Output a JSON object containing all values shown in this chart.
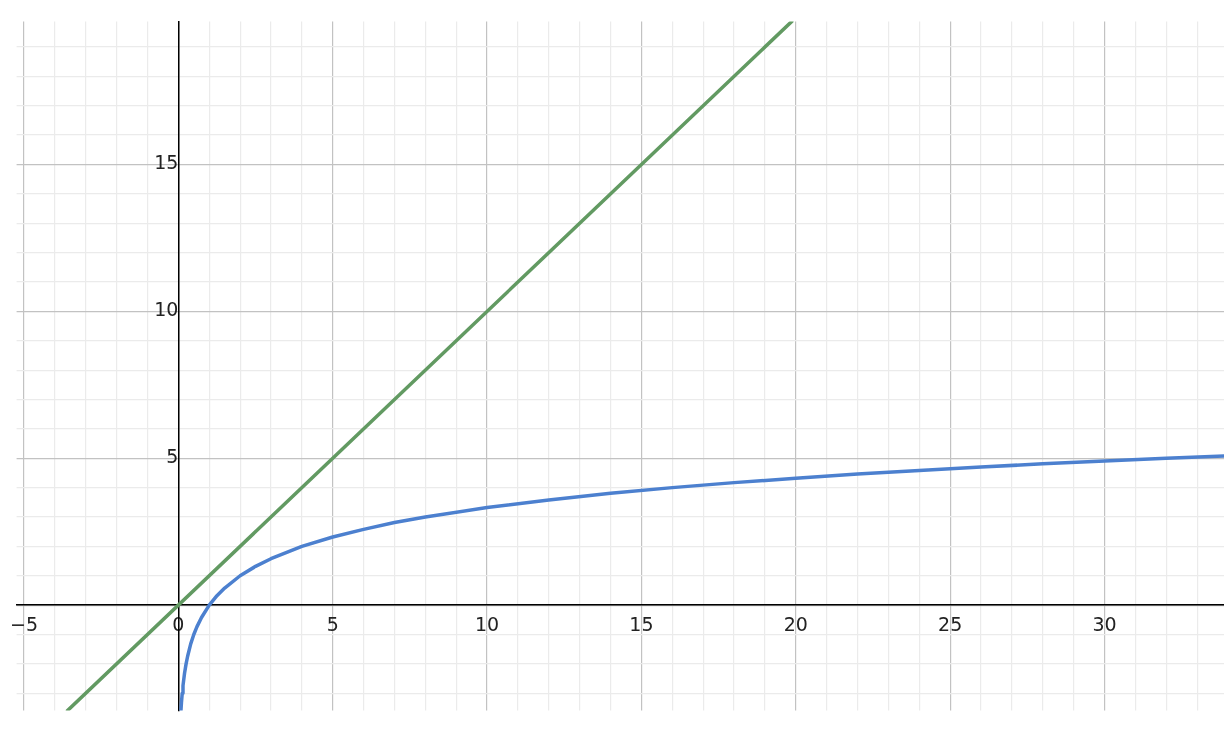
{
  "chart_data": {
    "type": "line",
    "series": [
      {
        "color": "#629a62",
        "x": [
          -3.59,
          19.87
        ],
        "values": [
          -3.59,
          19.87
        ]
      },
      {
        "color": "#4c80cf",
        "x": [
          0.083,
          0.1,
          0.125,
          0.15,
          0.2,
          0.25,
          0.3,
          0.4,
          0.5,
          0.6,
          0.75,
          1,
          1.25,
          1.5,
          2,
          2.5,
          3,
          4,
          5,
          6,
          7,
          8,
          10,
          12,
          14,
          16,
          18,
          20,
          22,
          24,
          26,
          28,
          30,
          32,
          33.87
        ],
        "values": [
          -3.59,
          -3.32,
          -3,
          -2.74,
          -2.32,
          -2,
          -1.74,
          -1.32,
          -1,
          -0.74,
          -0.42,
          0,
          0.32,
          0.58,
          1,
          1.32,
          1.58,
          2,
          2.32,
          2.58,
          2.81,
          3,
          3.32,
          3.58,
          3.81,
          4,
          4.17,
          4.32,
          4.46,
          4.58,
          4.7,
          4.81,
          4.91,
          5,
          5.08
        ]
      }
    ],
    "xlim": [
      -5.24,
      33.87
    ],
    "ylim": [
      -3.59,
      19.87
    ],
    "xticks": [
      {
        "value": -5,
        "label": "−5"
      },
      {
        "value": -4,
        "label": null
      },
      {
        "value": -3,
        "label": null
      },
      {
        "value": -2,
        "label": null
      },
      {
        "value": -1,
        "label": null
      },
      0,
      {
        "value": 1,
        "label": null
      },
      {
        "value": 2,
        "label": null
      },
      {
        "value": 3,
        "label": null
      },
      {
        "value": 4,
        "label": null
      },
      5,
      {
        "value": 6,
        "label": null
      },
      {
        "value": 7,
        "label": null
      },
      {
        "value": 8,
        "label": null
      },
      {
        "value": 9,
        "label": null
      },
      10,
      {
        "value": 11,
        "label": null
      },
      {
        "value": 12,
        "label": null
      },
      {
        "value": 13,
        "label": null
      },
      {
        "value": 14,
        "label": null
      },
      15,
      {
        "value": 16,
        "label": null
      },
      {
        "value": 17,
        "label": null
      },
      {
        "value": 18,
        "label": null
      },
      {
        "value": 19,
        "label": null
      },
      20,
      {
        "value": 21,
        "label": null
      },
      {
        "value": 22,
        "label": null
      },
      {
        "value": 23,
        "label": null
      },
      {
        "value": 24,
        "label": null
      },
      25,
      {
        "value": 26,
        "label": null
      },
      {
        "value": 27,
        "label": null
      },
      {
        "value": 28,
        "label": null
      },
      {
        "value": 29,
        "label": null
      },
      30,
      {
        "value": 31,
        "label": null
      },
      {
        "value": 32,
        "label": null
      },
      {
        "value": 33,
        "label": null
      }
    ],
    "yticks": [
      {
        "value": -3,
        "label": null
      },
      {
        "value": -2,
        "label": null
      },
      {
        "value": -1,
        "label": null
      },
      {
        "value": 0,
        "label": null
      },
      {
        "value": 1,
        "label": null
      },
      {
        "value": 2,
        "label": null
      },
      {
        "value": 3,
        "label": null
      },
      {
        "value": 4,
        "label": null
      },
      5,
      {
        "value": 6,
        "label": null
      },
      {
        "value": 7,
        "label": null
      },
      {
        "value": 8,
        "label": null
      },
      {
        "value": 9,
        "label": null
      },
      10,
      {
        "value": 11,
        "label": null
      },
      {
        "value": 12,
        "label": null
      },
      {
        "value": 13,
        "label": null
      },
      {
        "value": 14,
        "label": null
      },
      15,
      {
        "value": 16,
        "label": null
      },
      {
        "value": 17,
        "label": null
      },
      {
        "value": 18,
        "label": null
      },
      {
        "value": 19,
        "label": null
      }
    ],
    "grid": true,
    "marker": "none",
    "line_style": "solid",
    "legend": false
  }
}
